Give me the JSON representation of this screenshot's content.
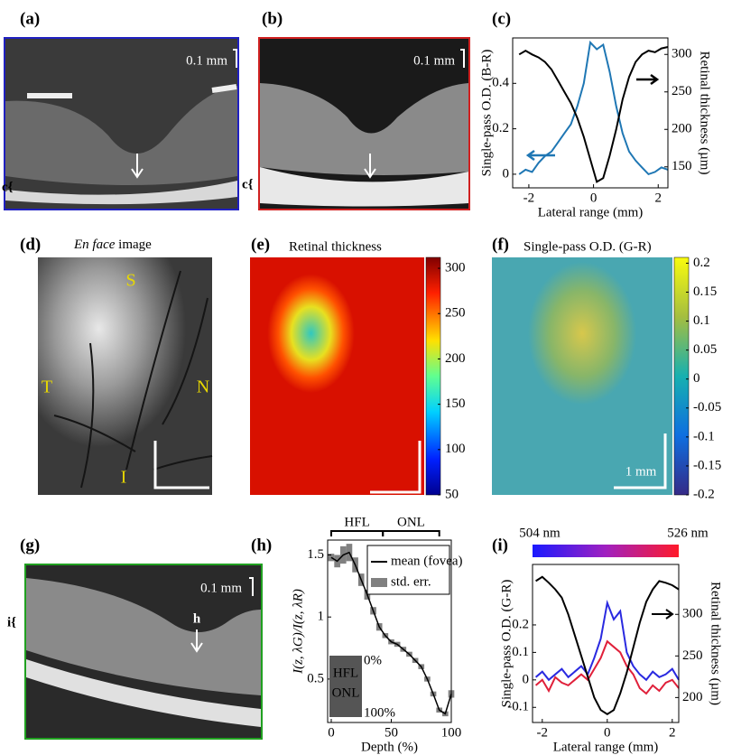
{
  "panels": {
    "a": {
      "label": "(a)",
      "scale": "0.1 mm",
      "side": "c{"
    },
    "b": {
      "label": "(b)",
      "scale": "0.1 mm",
      "side": "c{"
    },
    "d": {
      "label": "(d)",
      "title_italic": "En face",
      "title": "image",
      "S": "S",
      "T": "T",
      "N": "N",
      "I": "I"
    },
    "e": {
      "label": "(e)",
      "title": "Retinal thickness",
      "colorbar": {
        "lim": [
          50,
          312
        ],
        "ticks": [
          300,
          250,
          200,
          150,
          100,
          50
        ]
      }
    },
    "f": {
      "label": "(f)",
      "title": "Single-pass O.D. (G-R)",
      "scale": "1 mm",
      "colorbar": {
        "lim": [
          -0.2,
          0.21
        ],
        "ticks": [
          0.2,
          0.15,
          0.1,
          0.05,
          0,
          -0.05,
          -0.1,
          -0.15,
          -0.2
        ]
      }
    },
    "g": {
      "label": "(g)",
      "scale": "0.1 mm",
      "arrow": "h",
      "side": "i{"
    }
  },
  "chart_data": [
    {
      "type": "line",
      "label": "(c)",
      "xlabel": "Lateral range (mm)",
      "ylabel": "Single-pass O.D. (B-R)",
      "y2label": "Retinal thickness (µm)",
      "x": [
        -2.3,
        -2.1,
        -1.9,
        -1.7,
        -1.5,
        -1.3,
        -1.1,
        -0.9,
        -0.7,
        -0.5,
        -0.3,
        -0.1,
        0.1,
        0.3,
        0.5,
        0.7,
        0.9,
        1.1,
        1.3,
        1.5,
        1.7,
        1.9,
        2.1,
        2.3
      ],
      "xlim": [
        -2.5,
        2.3
      ],
      "xticks": [
        -2,
        0,
        2
      ],
      "ylim": [
        -0.06,
        0.6
      ],
      "yticks": [
        0,
        0.2,
        0.4
      ],
      "y2lim": [
        122,
        322
      ],
      "y2ticks": [
        150,
        200,
        250,
        300
      ],
      "series": [
        {
          "color": "#1f77b4",
          "values": [
            0.0,
            0.02,
            0.01,
            0.05,
            0.08,
            0.1,
            0.14,
            0.18,
            0.22,
            0.3,
            0.4,
            0.58,
            0.55,
            0.57,
            0.45,
            0.3,
            0.18,
            0.1,
            0.06,
            0.03,
            0.0,
            0.01,
            0.03,
            0.02
          ]
        },
        {
          "color": "#000000",
          "axis": "y2",
          "values": [
            300,
            305,
            300,
            296,
            290,
            280,
            265,
            250,
            235,
            215,
            190,
            160,
            130,
            135,
            165,
            200,
            240,
            270,
            290,
            300,
            305,
            303,
            308,
            310
          ]
        }
      ]
    },
    {
      "type": "line",
      "label": "(h)",
      "xlabel": "Depth (%)",
      "ylabel": "I(z, λG)/I(z, λR)",
      "x": [
        0,
        5,
        10,
        15,
        20,
        25,
        30,
        35,
        40,
        45,
        50,
        55,
        60,
        65,
        70,
        75,
        80,
        85,
        90,
        95,
        100
      ],
      "xlim": [
        -3,
        100
      ],
      "xticks": [
        0,
        50,
        100
      ],
      "ylim": [
        0.15,
        1.62
      ],
      "yticks": [
        0.5,
        1,
        1.5
      ],
      "regions": [
        {
          "label": "HFL",
          "range": [
            0,
            43
          ]
        },
        {
          "label": "ONL",
          "range": [
            43,
            90
          ]
        }
      ],
      "inset": [
        "HFL",
        "ONL"
      ],
      "inset_marks": [
        "0%",
        "100%"
      ],
      "series": [
        {
          "name": "mean (fovea)",
          "color": "#000000",
          "error_name": "std. err.",
          "error_color": "#808080",
          "values": [
            1.48,
            1.45,
            1.5,
            1.52,
            1.42,
            1.3,
            1.18,
            1.05,
            0.92,
            0.85,
            0.8,
            0.78,
            0.74,
            0.7,
            0.65,
            0.6,
            0.5,
            0.38,
            0.25,
            0.22,
            0.38
          ],
          "errors": [
            0.03,
            0.05,
            0.07,
            0.07,
            0.06,
            0.05,
            0.04,
            0.03,
            0.03,
            0.02,
            0.02,
            0.02,
            0.02,
            0.02,
            0.02,
            0.02,
            0.02,
            0.02,
            0.02,
            0.02,
            0.03
          ]
        }
      ]
    },
    {
      "type": "line",
      "label": "(i)",
      "xlabel": "Lateral range (mm)",
      "ylabel": "Single-pass O.D. (G-R)",
      "y2label": "Retinal thickness (µm)",
      "colorbar": [
        "504 nm",
        "526 nm"
      ],
      "x": [
        -2.2,
        -2.0,
        -1.8,
        -1.6,
        -1.4,
        -1.2,
        -1.0,
        -0.8,
        -0.6,
        -0.4,
        -0.2,
        0,
        0.2,
        0.4,
        0.6,
        0.8,
        1.0,
        1.2,
        1.4,
        1.6,
        1.8,
        2.0,
        2.2
      ],
      "xlim": [
        -2.3,
        2.2
      ],
      "xticks": [
        -2,
        0,
        2
      ],
      "ylim": [
        -0.155,
        0.42
      ],
      "yticks": [
        -0.1,
        0,
        0.1,
        0.2
      ],
      "y2lim": [
        170,
        360
      ],
      "y2ticks": [
        200,
        250,
        300
      ],
      "series": [
        {
          "color": "#e0203a",
          "values": [
            -0.02,
            0.0,
            -0.04,
            0.01,
            -0.01,
            -0.02,
            0.0,
            0.02,
            0.0,
            0.04,
            0.08,
            0.14,
            0.12,
            0.1,
            0.05,
            0.02,
            -0.03,
            -0.05,
            -0.02,
            -0.04,
            -0.01,
            0.0,
            -0.03
          ]
        },
        {
          "color": "#2a2ae0",
          "values": [
            0.01,
            0.03,
            0.0,
            0.02,
            0.04,
            0.01,
            0.03,
            0.05,
            0.02,
            0.08,
            0.15,
            0.28,
            0.22,
            0.25,
            0.1,
            0.05,
            0.02,
            0.0,
            0.03,
            0.01,
            0.02,
            0.04,
            0.0
          ]
        },
        {
          "color": "#000000",
          "axis": "y2",
          "values": [
            340,
            345,
            338,
            330,
            320,
            300,
            275,
            250,
            225,
            200,
            185,
            180,
            185,
            205,
            230,
            260,
            290,
            315,
            330,
            340,
            338,
            335,
            330
          ]
        }
      ]
    }
  ]
}
